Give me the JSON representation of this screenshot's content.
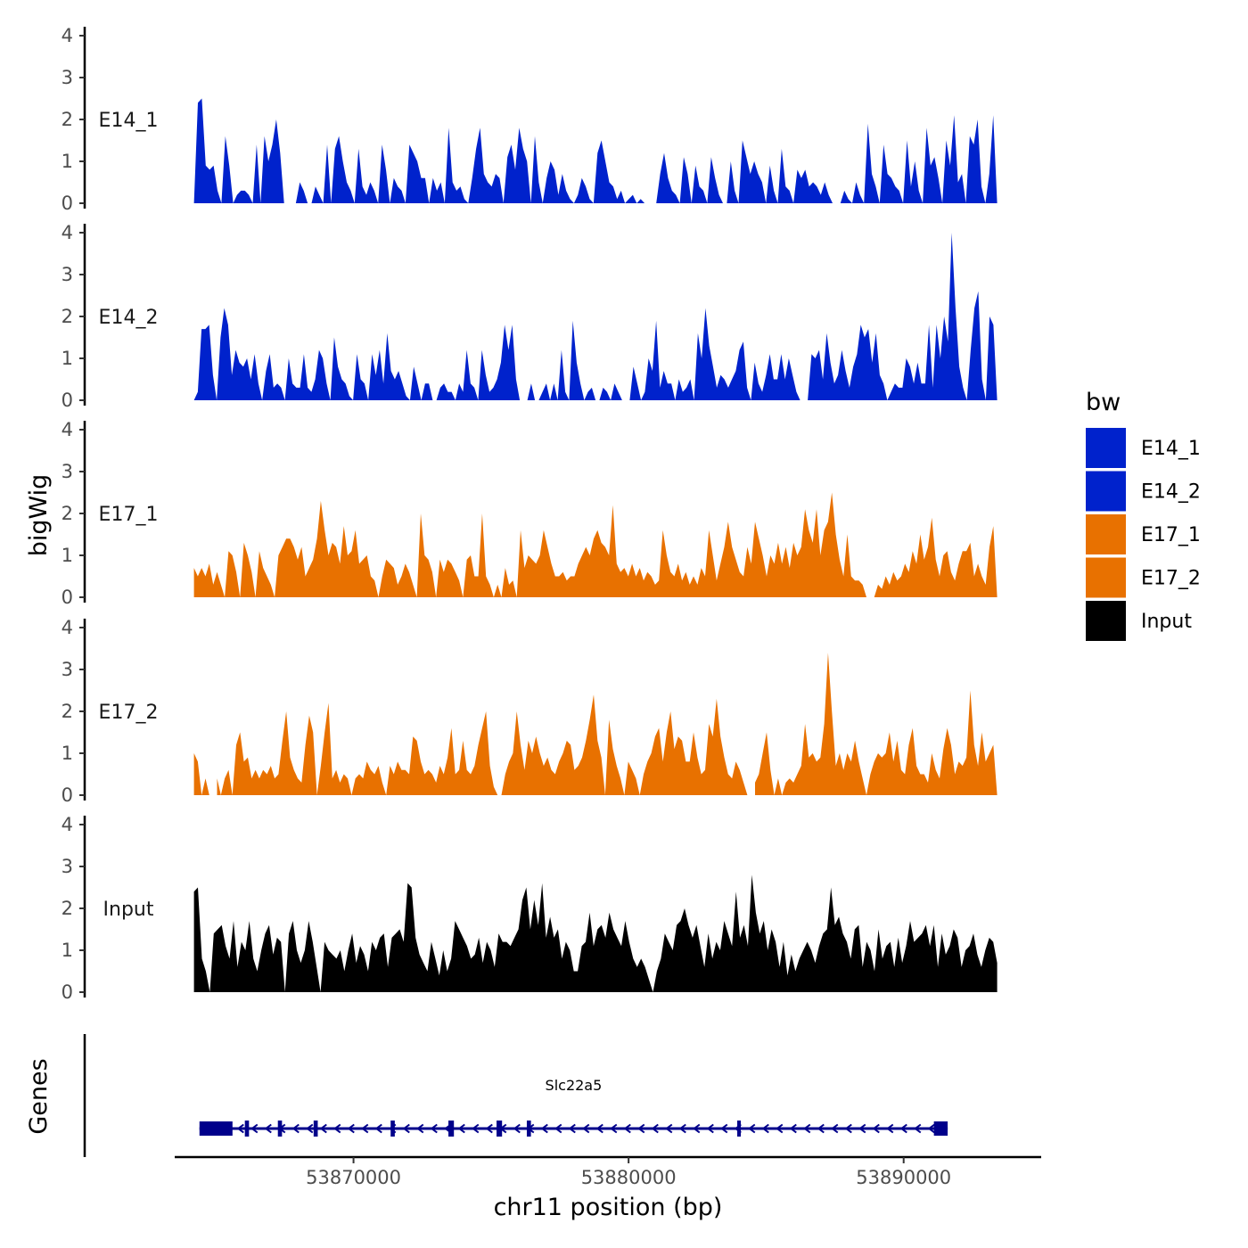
{
  "chart_data": {
    "type": "area",
    "title": "",
    "xlabel": "chr11 position (bp)",
    "ylabel": "bigWig",
    "gene_panel_label": "Genes",
    "xlim": [
      53863500,
      53895000
    ],
    "ylim": [
      0,
      4
    ],
    "y_ticks": [
      "0",
      "1",
      "2",
      "3",
      "4"
    ],
    "x_ticks": [
      {
        "value": 53870000,
        "label": "53870000"
      },
      {
        "value": 53880000,
        "label": "53880000"
      },
      {
        "value": 53890000,
        "label": "53890000"
      }
    ],
    "grid": false,
    "legend": {
      "title": "bw",
      "position": "right",
      "entries": [
        {
          "label": "E14_1",
          "color": "#0022CC"
        },
        {
          "label": "E14_2",
          "color": "#0022CC"
        },
        {
          "label": "E17_1",
          "color": "#E87100"
        },
        {
          "label": "E17_2",
          "color": "#E87100"
        },
        {
          "label": "Input",
          "color": "#000000"
        }
      ]
    },
    "series": [
      {
        "name": "E14_1",
        "color": "#0022CC",
        "x_start": 53864200,
        "x_end": 53893400,
        "values": [
          0,
          2.4,
          2.5,
          0.9,
          0.8,
          0.9,
          0.3,
          0,
          1.6,
          0.9,
          0,
          0.2,
          0.3,
          0.3,
          0.2,
          0,
          1.4,
          0,
          1.6,
          1.0,
          1.4,
          2.0,
          1.2,
          0,
          null,
          null,
          0,
          0.5,
          0.3,
          0,
          0,
          0.4,
          0.2,
          0,
          1.4,
          0,
          1.3,
          1.6,
          1.0,
          0.5,
          0.3,
          0,
          1.3,
          0.4,
          0.2,
          0.5,
          0.3,
          0,
          1.4,
          0.8,
          0,
          0.6,
          0.4,
          0.3,
          0,
          1.4,
          1.2,
          1.0,
          0.6,
          0.6,
          0,
          0.6,
          0.3,
          0.5,
          0,
          1.8,
          0.5,
          0.3,
          0.4,
          0.1,
          0,
          0.6,
          1.3,
          1.8,
          0.7,
          0.5,
          0.4,
          0.7,
          0.6,
          0,
          1.1,
          1.4,
          0.8,
          1.8,
          1.3,
          1.0,
          0,
          1.6,
          0.5,
          0,
          0.6,
          1.0,
          0.8,
          0.2,
          0.7,
          0.3,
          0.1,
          0,
          0.2,
          0.6,
          0.4,
          0.1,
          0,
          1.2,
          1.5,
          1.0,
          0.5,
          0.4,
          0.1,
          0.3,
          0,
          0.1,
          0.2,
          0,
          0.1,
          0,
          0,
          0,
          0,
          0.7,
          1.2,
          0.6,
          0.3,
          0.2,
          0,
          1.1,
          0.7,
          0,
          0.9,
          0.4,
          0.3,
          0,
          1.1,
          0.6,
          0.2,
          0,
          0,
          1.0,
          0.3,
          0,
          1.5,
          1.1,
          0.7,
          1.0,
          0.7,
          0.5,
          0,
          0.9,
          0.3,
          0,
          1.3,
          0.4,
          0.3,
          0,
          0.8,
          0.6,
          0.8,
          0.4,
          0.5,
          0.4,
          0.2,
          0.5,
          0.2,
          0,
          null,
          0,
          0.3,
          0.1,
          0,
          0.5,
          0.2,
          0,
          1.9,
          0.7,
          0.4,
          0,
          1.4,
          0.7,
          0.6,
          0.4,
          0.3,
          0,
          1.5,
          0.4,
          1.0,
          0.3,
          0,
          1.8,
          0.9,
          1.1,
          0.6,
          0,
          1.5,
          0.9,
          2.1,
          0.5,
          0.7,
          0,
          1.6,
          1.4,
          2.0,
          0.4,
          0,
          0.7,
          2.1,
          0
        ]
      },
      {
        "name": "E14_2",
        "color": "#0022CC",
        "x_start": 53864200,
        "x_end": 53893400,
        "values": [
          0,
          0.2,
          1.7,
          1.7,
          1.8,
          0.6,
          0,
          1.5,
          2.2,
          1.8,
          0.6,
          1.2,
          0.9,
          0.8,
          1.0,
          0.5,
          1.1,
          0.4,
          0,
          0.7,
          1.1,
          0.3,
          0.4,
          0.3,
          0,
          1.0,
          0.4,
          0.3,
          0.3,
          1.1,
          0.3,
          0.2,
          0.5,
          1.2,
          1.0,
          0.4,
          0,
          1.5,
          0.8,
          0.5,
          0.4,
          0.1,
          0,
          1.1,
          0.5,
          0.4,
          0,
          1.1,
          0.6,
          1.2,
          0.4,
          1.6,
          0.7,
          0.5,
          0.7,
          0.4,
          0.1,
          0,
          0.8,
          0.4,
          0,
          0.4,
          0.4,
          0,
          0,
          0.3,
          0.4,
          0.2,
          0.2,
          0,
          0.4,
          0.2,
          1.2,
          0.4,
          0.3,
          0,
          1.2,
          0.6,
          0.2,
          0.3,
          0.5,
          0.9,
          1.8,
          1.2,
          1.8,
          0.5,
          0,
          0,
          0,
          0.4,
          0,
          0,
          0.2,
          0.4,
          0,
          0.4,
          0,
          1.2,
          0.2,
          0,
          1.9,
          0.9,
          0.4,
          0,
          0.2,
          0.3,
          0,
          0,
          0.3,
          0.2,
          0,
          0.4,
          0.2,
          0,
          0,
          0,
          0.8,
          0.4,
          0,
          0.2,
          1.0,
          0.7,
          1.9,
          0.3,
          0.7,
          0.4,
          0.4,
          0,
          0.5,
          0.2,
          0.3,
          0.5,
          0,
          1.6,
          1.0,
          2.2,
          1.3,
          0.8,
          0.3,
          0.6,
          0.5,
          0.3,
          0.5,
          0.7,
          1.2,
          1.4,
          0.3,
          0,
          0.9,
          0.4,
          0.2,
          0.6,
          1.1,
          0.5,
          0.5,
          1.1,
          0.5,
          1.0,
          0.6,
          0.2,
          0,
          null,
          0,
          1.1,
          1.0,
          1.2,
          0.5,
          1.6,
          0.9,
          0.4,
          0.6,
          1.2,
          0.7,
          0.3,
          0.8,
          1.1,
          1.8,
          1.5,
          1.7,
          0.9,
          1.6,
          0.6,
          0.4,
          0,
          0.2,
          0.4,
          0.3,
          0.3,
          1.0,
          0.8,
          0.4,
          0.9,
          0.4,
          0.4,
          1.8,
          0.3,
          1.8,
          1.0,
          2.0,
          1.4,
          4.0,
          2.2,
          0.8,
          0.3,
          0,
          1.2,
          2.2,
          2.6,
          0.5,
          0,
          2.0,
          1.8,
          0
        ]
      },
      {
        "name": "E17_1",
        "color": "#E87100",
        "x_start": 53864200,
        "x_end": 53893400,
        "values": [
          0.7,
          0.5,
          0.7,
          0.5,
          0.8,
          0.3,
          0.6,
          0.3,
          0,
          1.1,
          1.0,
          0.6,
          0,
          1.3,
          1.0,
          0.6,
          0,
          1.1,
          0.7,
          0.5,
          0.3,
          0,
          1.0,
          1.2,
          1.4,
          1.4,
          1.2,
          0.9,
          1.2,
          0.5,
          0.7,
          0.9,
          1.4,
          2.3,
          1.6,
          1.0,
          1.3,
          1.2,
          0.8,
          1.7,
          1.0,
          1.1,
          1.6,
          0.8,
          0.9,
          1.0,
          0.5,
          0.4,
          0,
          0.5,
          0.9,
          0.8,
          0.7,
          0.3,
          0.5,
          0.8,
          0.6,
          0.3,
          0,
          2.0,
          1.0,
          0.9,
          0.6,
          0,
          0.9,
          0.6,
          0.9,
          0.8,
          0.6,
          0.4,
          0,
          0.9,
          1.0,
          0.5,
          0.5,
          2.0,
          0.5,
          0.3,
          0,
          0.3,
          0,
          0.7,
          0.3,
          0.4,
          0,
          1.6,
          0.7,
          1.0,
          0.9,
          0.8,
          1.0,
          1.6,
          1.2,
          0.8,
          0.5,
          0.5,
          0.6,
          0.4,
          0.5,
          0.5,
          0.8,
          1.0,
          1.2,
          1.0,
          1.4,
          1.6,
          1.3,
          1.2,
          1.0,
          2.2,
          0.8,
          0.6,
          0.7,
          0.5,
          0.8,
          0.5,
          0.7,
          0.4,
          0.6,
          0.5,
          0.3,
          0.4,
          1.6,
          1.0,
          0.6,
          0.5,
          0.8,
          0.4,
          0.6,
          0.3,
          0.5,
          0.3,
          0.7,
          0.5,
          1.6,
          1.0,
          0.4,
          0.8,
          1.2,
          1.8,
          1.2,
          0.9,
          0.6,
          0.5,
          1.2,
          0.8,
          1.8,
          1.4,
          1.0,
          0.5,
          1.0,
          0.8,
          1.3,
          0.8,
          1.2,
          0.7,
          1.3,
          1.0,
          1.2,
          2.1,
          1.6,
          1.3,
          2.1,
          1.0,
          1.6,
          1.8,
          2.5,
          1.5,
          0.9,
          0.5,
          1.5,
          0.5,
          0.4,
          0.4,
          0.3,
          0,
          null,
          0,
          0.3,
          0.2,
          0.5,
          0.3,
          0.6,
          0.4,
          0.5,
          0.8,
          0.6,
          1.1,
          0.8,
          1.5,
          0.9,
          1.2,
          1.9,
          0.9,
          0.5,
          1.0,
          1.1,
          0.6,
          0.4,
          0.8,
          1.1,
          1.1,
          1.3,
          0.5,
          0.8,
          0.5,
          0.3,
          1.2,
          1.7,
          0
        ]
      },
      {
        "name": "E17_2",
        "color": "#E87100",
        "x_start": 53864200,
        "x_end": 53893400,
        "values": [
          1.0,
          0.8,
          0,
          0.4,
          0,
          null,
          0.4,
          0,
          0.4,
          0.6,
          0,
          1.2,
          1.5,
          0.8,
          0.9,
          0.4,
          0.6,
          0.4,
          0.6,
          0.5,
          0.7,
          0.4,
          0.5,
          1.3,
          2.0,
          0.9,
          0.6,
          0.4,
          0.3,
          1.2,
          1.9,
          1.5,
          0,
          0.7,
          1.5,
          2.2,
          0.4,
          0.6,
          0.3,
          0.5,
          0.4,
          0,
          0.4,
          0.5,
          0.4,
          0.8,
          0.6,
          0.5,
          0.7,
          0.3,
          0,
          0.7,
          0.5,
          0.8,
          0.6,
          0.6,
          0.5,
          1.4,
          1.3,
          0.8,
          0.5,
          0.6,
          0.5,
          0.3,
          0.7,
          0.5,
          0.9,
          1.6,
          0.5,
          0.6,
          1.3,
          0.6,
          0.5,
          0.7,
          1.2,
          1.6,
          2.0,
          0.7,
          0.2,
          0,
          0,
          0.5,
          0.8,
          1.0,
          2.0,
          1.2,
          0.6,
          1.3,
          1.0,
          1.4,
          1.0,
          0.7,
          0.9,
          0.6,
          0.5,
          0.8,
          1.0,
          1.3,
          1.2,
          0.6,
          0.7,
          0.9,
          1.3,
          1.8,
          2.4,
          1.3,
          0.9,
          0,
          1.8,
          1.1,
          0.7,
          0.4,
          0,
          0.8,
          0.6,
          0.4,
          0,
          0.5,
          0.8,
          1.0,
          1.4,
          1.6,
          0.8,
          1.5,
          2.0,
          1.1,
          1.4,
          1.3,
          0.8,
          0.8,
          1.5,
          0.9,
          0.5,
          0.6,
          1.7,
          1.4,
          2.3,
          1.4,
          0.9,
          0.5,
          0.4,
          0.8,
          0.6,
          0.3,
          0,
          null,
          0.3,
          0.5,
          1.0,
          1.5,
          0.6,
          0,
          0.4,
          0,
          0.3,
          0.4,
          0.3,
          0.5,
          0.7,
          1.7,
          0.9,
          1.0,
          0.8,
          0.9,
          1.7,
          3.4,
          2.0,
          0.7,
          1.0,
          0.6,
          1.0,
          0.8,
          1.3,
          0.8,
          0.4,
          0,
          0.5,
          0.8,
          1.0,
          0.9,
          1.0,
          1.5,
          0.8,
          1.3,
          0.6,
          0.5,
          1.2,
          1.6,
          0.7,
          0.5,
          0.5,
          0.3,
          1.0,
          0.6,
          0.4,
          1.1,
          1.6,
          1.2,
          0.5,
          0.8,
          0.7,
          0.9,
          2.5,
          1.2,
          0.7,
          1.5,
          0.8,
          1.0,
          1.2,
          0
        ]
      },
      {
        "name": "Input",
        "color": "#000000",
        "x_start": 53864200,
        "x_end": 53893400,
        "values": [
          2.4,
          2.5,
          0.8,
          0.5,
          0,
          1.4,
          1.5,
          1.6,
          1.1,
          0.8,
          1.7,
          0.6,
          1.2,
          1.0,
          1.7,
          0.8,
          0.5,
          1.0,
          1.4,
          1.6,
          0.9,
          1.3,
          1.2,
          0,
          1.4,
          1.7,
          1.0,
          0.7,
          1.0,
          1.7,
          1.2,
          0.6,
          0,
          1.2,
          1.0,
          0.9,
          0.8,
          1.0,
          0.5,
          1.0,
          1.4,
          0.7,
          1.1,
          0.9,
          0.5,
          1.2,
          1.0,
          1.3,
          1.4,
          0.6,
          1.3,
          1.4,
          1.5,
          1.2,
          2.6,
          2.5,
          1.3,
          0.9,
          0.7,
          0.5,
          1.2,
          0.8,
          0.4,
          1.0,
          0.5,
          0.8,
          1.7,
          1.5,
          1.3,
          1.1,
          0.8,
          0.9,
          1.3,
          0.7,
          1.2,
          1.0,
          0.6,
          1.4,
          1.2,
          1.2,
          1.1,
          1.3,
          1.5,
          2.2,
          2.5,
          1.5,
          2.2,
          1.6,
          2.6,
          1.3,
          1.8,
          1.3,
          1.5,
          0.8,
          1.2,
          1.0,
          0.5,
          0.5,
          1.1,
          1.2,
          1.9,
          1.1,
          1.5,
          1.6,
          1.3,
          1.9,
          1.5,
          1.3,
          1.1,
          1.7,
          1.2,
          0.8,
          0.6,
          0.8,
          0.6,
          0.3,
          0,
          0.5,
          0.8,
          1.4,
          1.2,
          1.0,
          1.6,
          1.7,
          2.0,
          1.6,
          1.3,
          1.6,
          1.1,
          0.6,
          1.4,
          0.8,
          1.2,
          1.0,
          1.7,
          1.4,
          1.1,
          2.4,
          1.3,
          1.6,
          1.1,
          2.8,
          1.9,
          1.4,
          1.7,
          1.0,
          1.5,
          1.2,
          0.6,
          1.2,
          0.4,
          0.9,
          0.5,
          0.8,
          1.0,
          1.2,
          1.0,
          0.7,
          1.1,
          1.4,
          1.5,
          2.5,
          1.6,
          1.8,
          1.4,
          1.2,
          0.8,
          1.5,
          1.6,
          0.6,
          1.2,
          1.0,
          0.5,
          1.5,
          0.8,
          1.1,
          1.2,
          0.6,
          1.3,
          0.7,
          1.1,
          1.7,
          1.2,
          1.3,
          1.4,
          1.6,
          1.1,
          1.6,
          0.6,
          1.4,
          0.9,
          1.1,
          1.5,
          1.3,
          0.6,
          1.0,
          1.1,
          1.4,
          0.9,
          0.6,
          1.0,
          1.3,
          1.2,
          0.7
        ]
      }
    ],
    "genes": [
      {
        "name": "Slc22a5",
        "strand": "-",
        "start": 53864400,
        "end": 53891600,
        "exons": [
          [
            53864400,
            53865600
          ],
          [
            53866050,
            53866200
          ],
          [
            53867250,
            53867400
          ],
          [
            53868550,
            53868700
          ],
          [
            53871350,
            53871500
          ],
          [
            53873450,
            53873650
          ],
          [
            53875200,
            53875400
          ],
          [
            53876300,
            53876450
          ],
          [
            53883950,
            53884050
          ],
          [
            53891100,
            53891600
          ]
        ]
      }
    ]
  }
}
